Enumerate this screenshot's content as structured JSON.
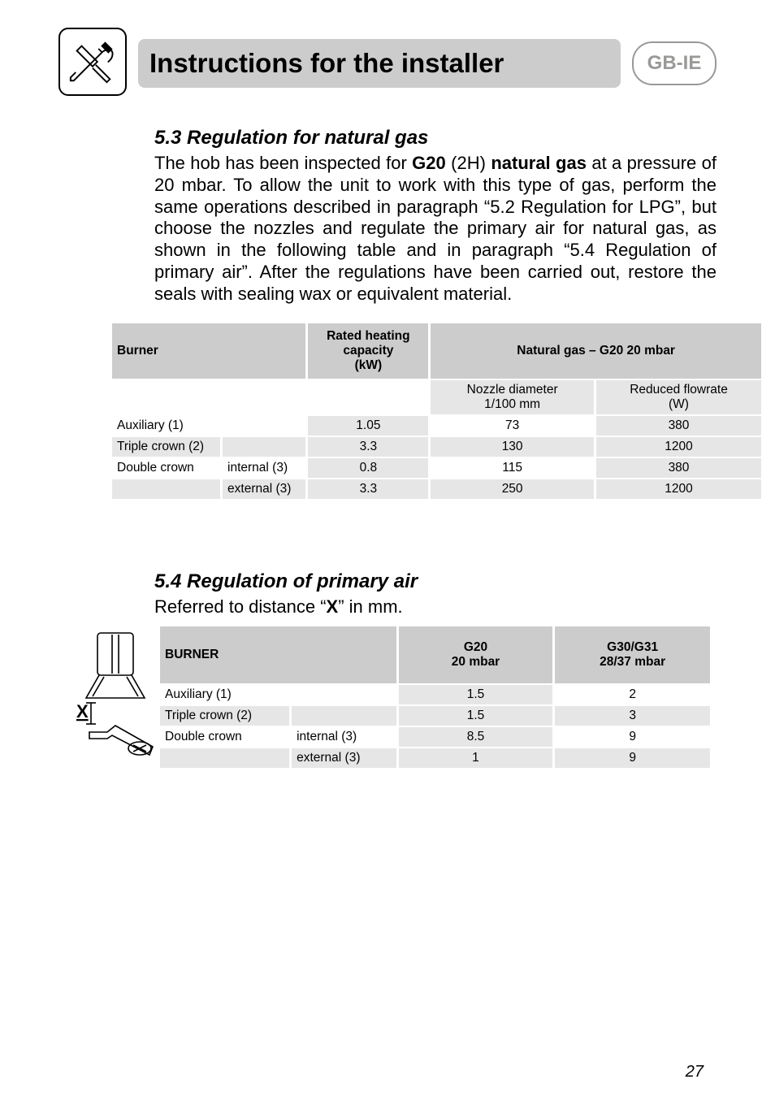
{
  "header": {
    "title": "Instructions for the installer",
    "badge": "GB-IE"
  },
  "section53": {
    "title": "5.3 Regulation for natural gas",
    "para_html": "The hob has been inspected for <b>G20</b> (2H) <b>natural gas</b> at a pressure of 20 mbar. To allow the unit to work with this type of gas, perform the same operations described in paragraph “5.2 Regulation for LPG”, but choose the nozzles and regulate the primary air for natural gas, as shown in the following table and in paragraph “5.4 Regulation of primary air”. After the regulations have been carried out, restore the seals with sealing wax or equivalent material.",
    "table": {
      "head_burner": "Burner",
      "head_rated": "Rated heating\ncapacity\n(kW)",
      "head_natgas": "Natural gas – G20  20 mbar",
      "sub_nozzle": "Nozzle diameter\n1/100 mm",
      "sub_flow": "Reduced flowrate\n(W)",
      "rows": [
        {
          "burner": "Auxiliary (1)",
          "sub": "",
          "kw": "1.05",
          "noz": "73",
          "flow": "380"
        },
        {
          "burner": "Triple crown (2)",
          "sub": "",
          "kw": "3.3",
          "noz": "130",
          "flow": "1200"
        },
        {
          "burner": "Double crown",
          "sub": "internal (3)",
          "kw": "0.8",
          "noz": "115",
          "flow": "380"
        },
        {
          "burner": "",
          "sub": "external (3)",
          "kw": "3.3",
          "noz": "250",
          "flow": "1200"
        }
      ]
    }
  },
  "section54": {
    "title": "5.4 Regulation of primary air",
    "sub_html": "Referred to distance “<b>X</b>” in mm.",
    "table": {
      "head_burner": "BURNER",
      "head_g20": "G20\n20 mbar",
      "head_g30": "G30/G31\n28/37 mbar",
      "rows": [
        {
          "burner": "Auxiliary (1)",
          "sub": "",
          "g20": "1.5",
          "g30": "2"
        },
        {
          "burner": "Triple crown (2)",
          "sub": "",
          "g20": "1.5",
          "g30": "3"
        },
        {
          "burner": "Double crown",
          "sub": "internal (3)",
          "g20": "8.5",
          "g30": "9"
        },
        {
          "burner": "",
          "sub": "external (3)",
          "g20": "1",
          "g30": "9"
        }
      ]
    }
  },
  "page_number": "27"
}
